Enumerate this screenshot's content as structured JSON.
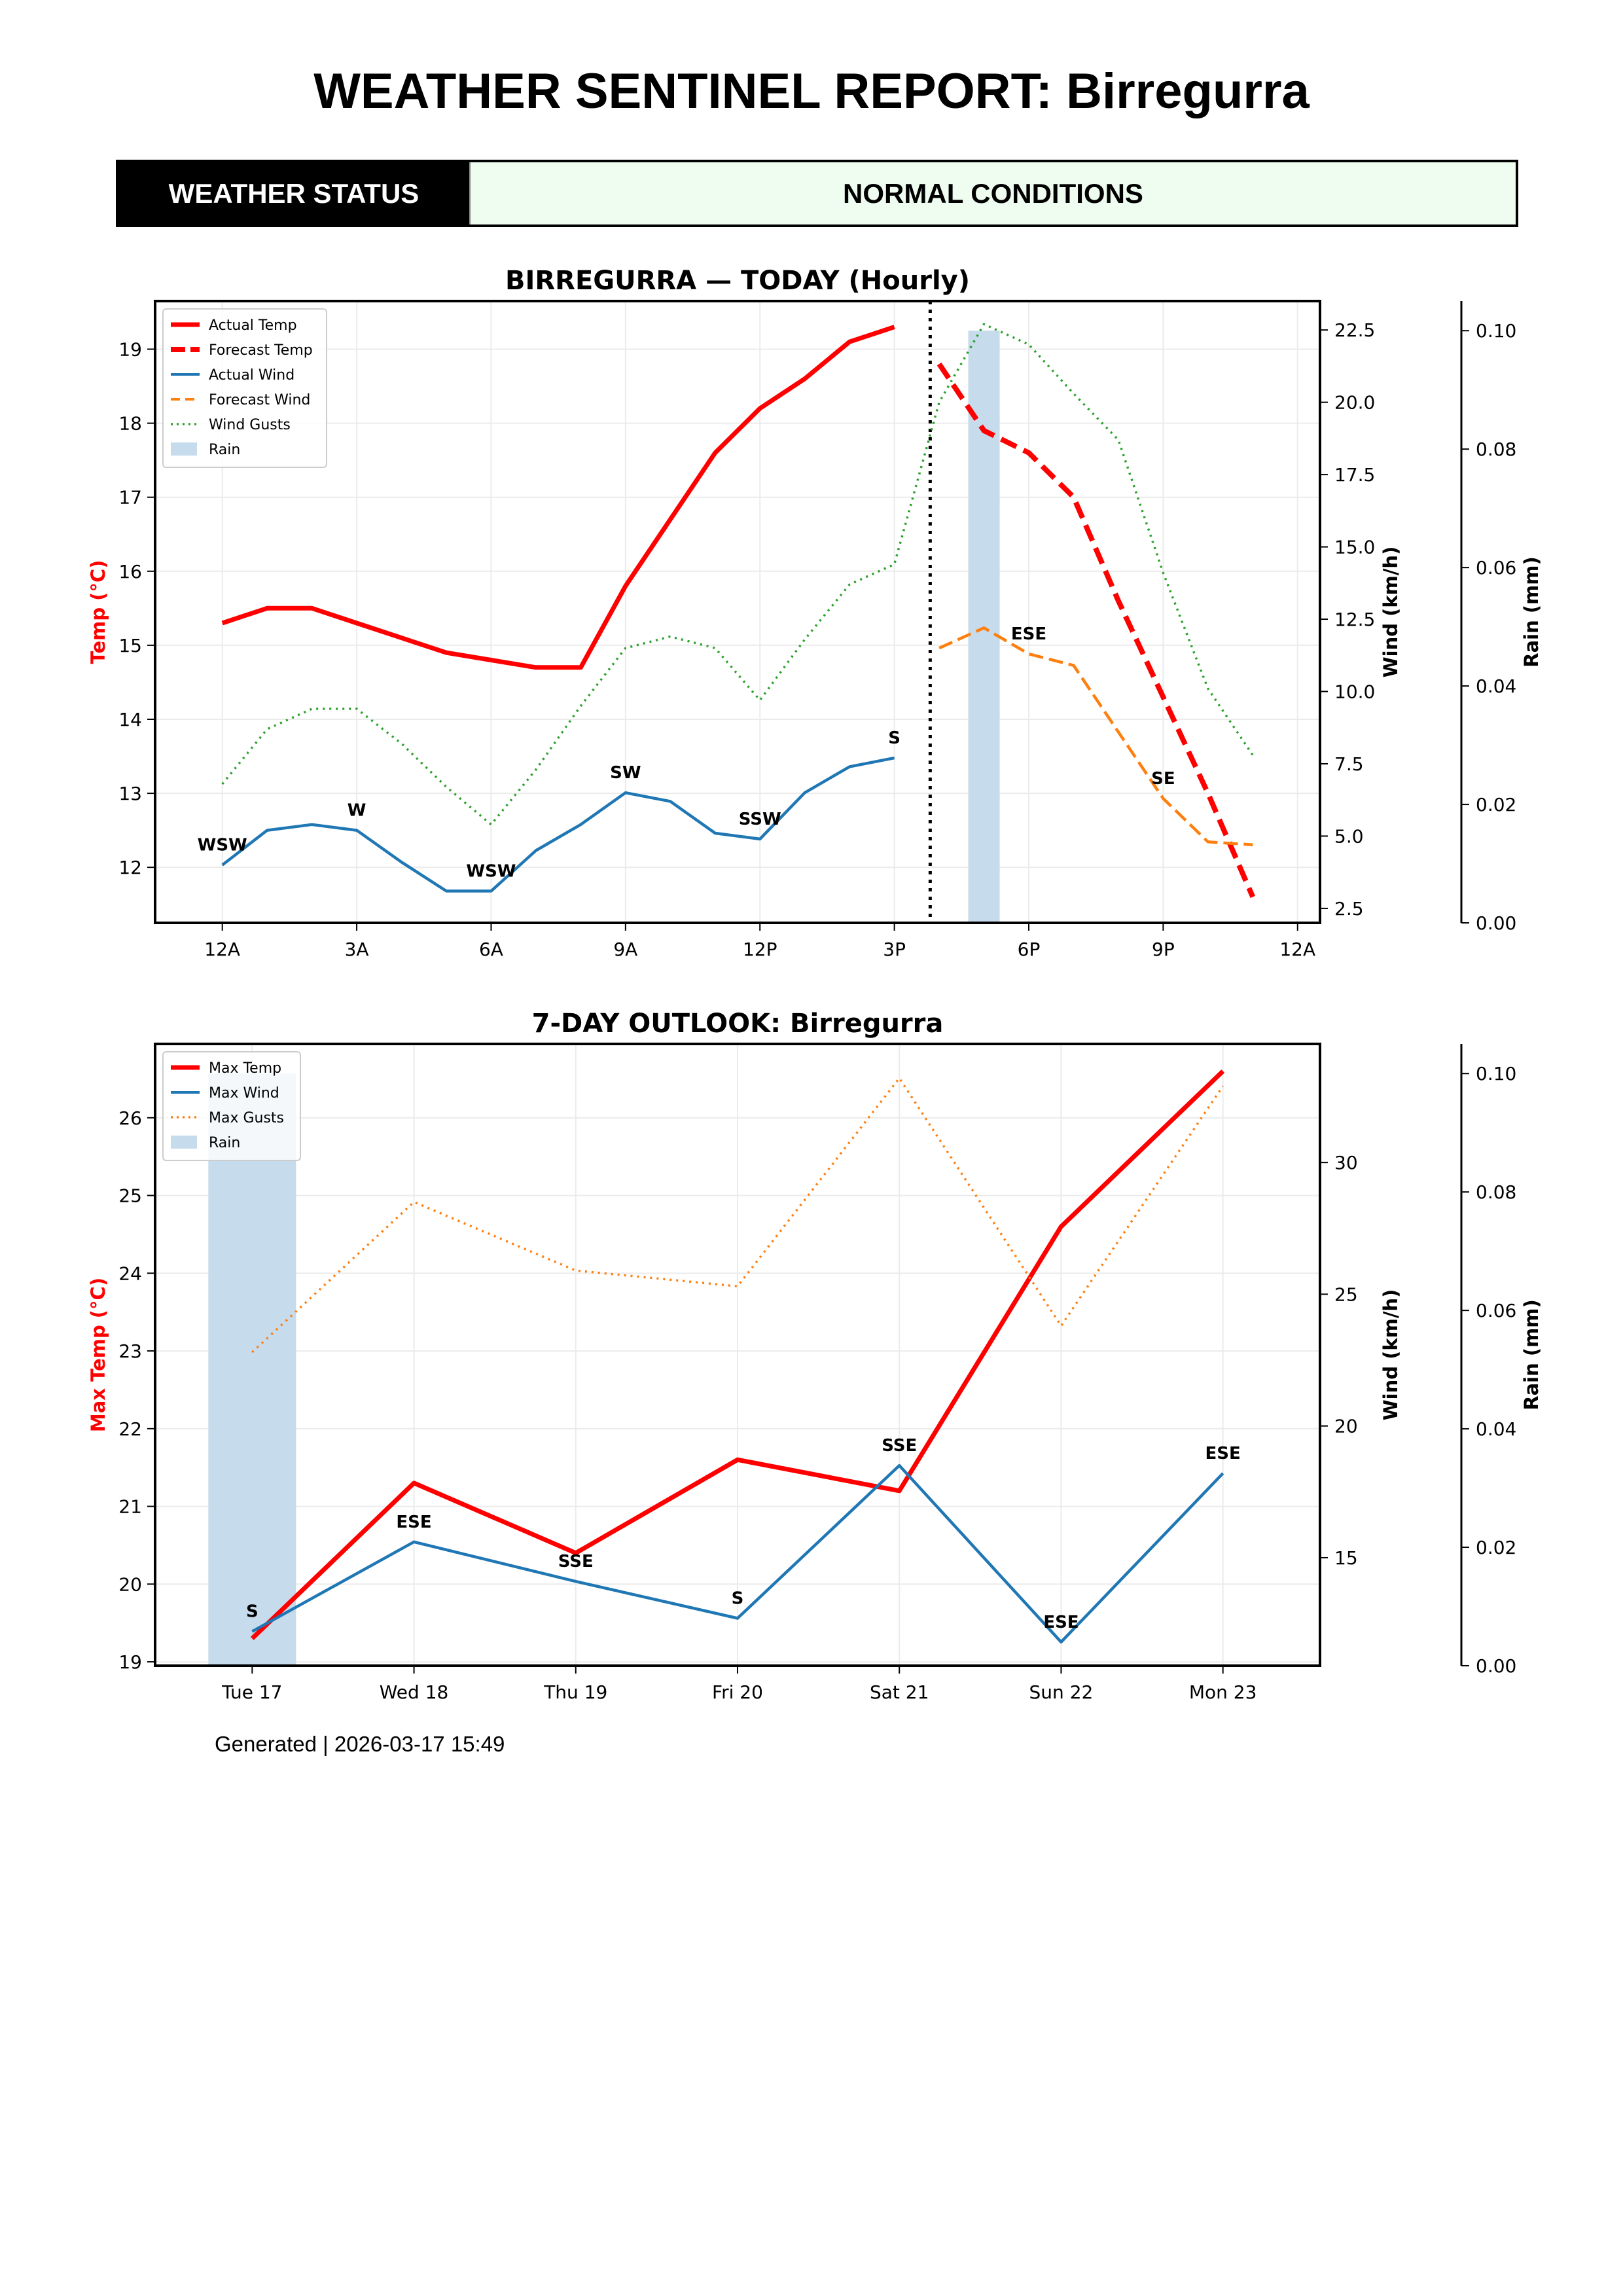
{
  "header": {
    "title": "WEATHER SENTINEL REPORT: Birregurra",
    "status_label": "WEATHER STATUS",
    "status_value": "NORMAL CONDITIONS",
    "status_bg_color": "#effdf0"
  },
  "footer": {
    "text": "Generated | 2026-03-17 15:49"
  },
  "colors": {
    "temp": "#ff0000",
    "wind": "#1f77b4",
    "forecast_wind": "#ff7f0e",
    "gusts_hourly": "#2ca02c",
    "gusts_daily": "#ff7f0e",
    "rain": "#c6dbec"
  },
  "chart_data": [
    {
      "type": "line",
      "title": "BIRREGURRA — TODAY (Hourly)",
      "xlabel": "",
      "ylabel": "Temp (°C)",
      "y2label": "Wind (km/h)",
      "y3label": "Rain (mm)",
      "x_ticks": [
        0,
        3,
        6,
        9,
        12,
        15,
        18,
        21,
        24
      ],
      "x_tick_labels": [
        "12A",
        "3A",
        "6A",
        "9A",
        "12P",
        "3P",
        "6P",
        "9P",
        "12A"
      ],
      "xlim": [
        -1.5,
        24.5
      ],
      "ylim": [
        11.25,
        19.65
      ],
      "y_ticks": [
        12,
        13,
        14,
        15,
        16,
        17,
        18,
        19
      ],
      "y2lim": [
        2.0,
        23.5
      ],
      "y2_ticks": [
        "2.5",
        "5.0",
        "7.5",
        "10.0",
        "12.5",
        "15.0",
        "17.5",
        "20.0",
        "22.5"
      ],
      "y3lim": [
        0,
        0.105
      ],
      "y3_ticks": [
        "0.00",
        "0.02",
        "0.04",
        "0.06",
        "0.08",
        "0.10"
      ],
      "now_marker_hour": 15.8,
      "grid": true,
      "legend_position": "top-left",
      "legend": [
        "Actual Temp",
        "Forecast Temp",
        "Actual Wind",
        "Forecast Wind",
        "Wind Gusts",
        "Rain"
      ],
      "series": [
        {
          "name": "Actual Temp",
          "axis": "temp",
          "style": "solid",
          "x": [
            0,
            1,
            2,
            3,
            4,
            5,
            6,
            7,
            8,
            9,
            10,
            11,
            12,
            13,
            14,
            15
          ],
          "values": [
            15.3,
            15.5,
            15.5,
            15.3,
            15.1,
            14.9,
            14.8,
            14.7,
            14.7,
            15.8,
            16.7,
            17.6,
            18.2,
            18.6,
            19.1,
            19.3
          ]
        },
        {
          "name": "Forecast Temp",
          "axis": "temp",
          "style": "dashed",
          "x": [
            16,
            17,
            18,
            19,
            20,
            21,
            22,
            23
          ],
          "values": [
            18.8,
            17.9,
            17.6,
            17.0,
            15.6,
            14.3,
            13.0,
            11.6
          ]
        },
        {
          "name": "Actual Wind",
          "axis": "wind",
          "style": "solid",
          "x": [
            0,
            1,
            2,
            3,
            4,
            5,
            6,
            7,
            8,
            9,
            10,
            11,
            12,
            13,
            14,
            15
          ],
          "values": [
            4.0,
            5.2,
            5.4,
            5.2,
            4.1,
            3.1,
            3.1,
            4.5,
            5.4,
            6.5,
            6.2,
            5.1,
            4.9,
            6.5,
            7.4,
            7.7
          ]
        },
        {
          "name": "Forecast Wind",
          "axis": "wind",
          "style": "dashed",
          "x": [
            16,
            17,
            18,
            19,
            20,
            21,
            22,
            23
          ],
          "values": [
            11.5,
            12.2,
            11.3,
            10.9,
            8.6,
            6.3,
            4.8,
            4.7
          ]
        },
        {
          "name": "Wind Gusts",
          "axis": "wind",
          "style": "dotted",
          "x": [
            0,
            1,
            2,
            3,
            4,
            5,
            6,
            7,
            8,
            9,
            10,
            11,
            12,
            13,
            14,
            15,
            16,
            17,
            18,
            19,
            20,
            21,
            22,
            23
          ],
          "values": [
            6.8,
            8.7,
            9.4,
            9.4,
            8.2,
            6.7,
            5.4,
            7.3,
            9.5,
            11.5,
            11.9,
            11.5,
            9.7,
            11.8,
            13.7,
            14.4,
            20.0,
            22.7,
            22.0,
            20.3,
            18.7,
            14.1,
            10.1,
            7.8
          ]
        }
      ],
      "rain": [
        {
          "x": 17,
          "value": 0.1
        }
      ],
      "annotations": [
        {
          "x": 0,
          "label": "WSW"
        },
        {
          "x": 3,
          "label": "W"
        },
        {
          "x": 6,
          "label": "WSW"
        },
        {
          "x": 9,
          "label": "SW"
        },
        {
          "x": 12,
          "label": "SSW"
        },
        {
          "x": 15,
          "label": "S"
        },
        {
          "x": 18,
          "label": "ESE"
        },
        {
          "x": 21,
          "label": "SE"
        }
      ]
    },
    {
      "type": "line",
      "title": "7-DAY OUTLOOK: Birregurra",
      "xlabel": "",
      "ylabel": "Max Temp (°C)",
      "y2label": "Wind (km/h)",
      "y3label": "Rain (mm)",
      "categories": [
        "Tue 17",
        "Wed 18",
        "Thu 19",
        "Fri 20",
        "Sat 21",
        "Sun 22",
        "Mon 23"
      ],
      "ylim": [
        18.95,
        26.95
      ],
      "y_ticks": [
        19,
        20,
        21,
        22,
        23,
        24,
        25,
        26
      ],
      "y2lim": [
        10.9,
        34.5
      ],
      "y2_ticks": [
        "15",
        "20",
        "25",
        "30"
      ],
      "y3lim": [
        0,
        0.105
      ],
      "y3_ticks": [
        "0.00",
        "0.02",
        "0.04",
        "0.06",
        "0.08",
        "0.10"
      ],
      "grid": true,
      "legend_position": "top-left",
      "legend": [
        "Max Temp",
        "Max Wind",
        "Max Gusts",
        "Rain"
      ],
      "series": [
        {
          "name": "Max Temp",
          "axis": "temp",
          "style": "solid",
          "values": [
            19.3,
            21.3,
            20.4,
            21.6,
            21.2,
            24.6,
            26.6
          ]
        },
        {
          "name": "Max Wind",
          "axis": "wind",
          "style": "solid",
          "values": [
            12.2,
            15.6,
            14.1,
            12.7,
            18.5,
            11.8,
            18.2
          ]
        },
        {
          "name": "Max Gusts",
          "axis": "wind",
          "style": "dotted",
          "values": [
            22.8,
            28.5,
            25.9,
            25.3,
            33.2,
            23.8,
            32.9
          ]
        }
      ],
      "rain": [
        0.1,
        0,
        0,
        0,
        0,
        0,
        0
      ],
      "annotations": [
        "S",
        "ESE",
        "SSE",
        "S",
        "SSE",
        "ESE",
        "ESE"
      ]
    }
  ]
}
